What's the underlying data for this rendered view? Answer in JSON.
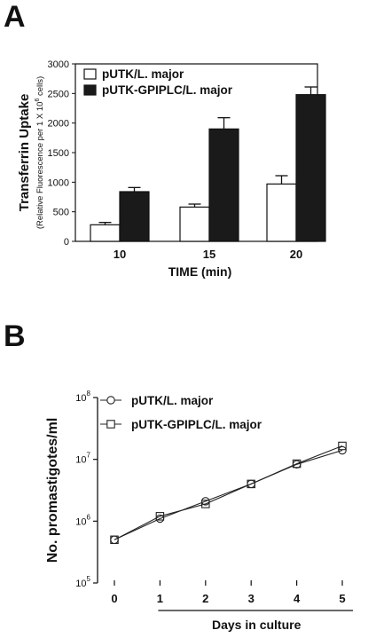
{
  "panels": {
    "a_label": "A",
    "b_label": "B"
  },
  "chart_data": [
    {
      "type": "bar",
      "panel": "A",
      "categories": [
        "10",
        "15",
        "20"
      ],
      "series": [
        {
          "name": "pUTK/L. major",
          "fill": "#ffffff",
          "values": [
            280,
            580,
            970
          ],
          "errors": [
            40,
            50,
            140
          ]
        },
        {
          "name": "pUTK-GPIPLC/L. major",
          "fill": "#1a1a1a",
          "values": [
            840,
            1900,
            2480
          ],
          "errors": [
            70,
            190,
            130
          ]
        }
      ],
      "ylim": [
        0,
        3000
      ],
      "yticks": [
        "0",
        "500",
        "1000",
        "1500",
        "2000",
        "2500",
        "3000"
      ],
      "ylabel_main": "Transferrin Uptake",
      "ylabel_sub_prefix": "(Relative Fluorescence per 1 X 10",
      "ylabel_sub_exp": "6",
      "ylabel_sub_suffix": " cells)",
      "xlabel": "TIME (min)",
      "legend": "top-left"
    },
    {
      "type": "line",
      "panel": "B",
      "yscale": "log",
      "x": [
        0,
        1,
        2,
        3,
        4,
        5
      ],
      "xticks": [
        "0",
        "1",
        "2",
        "3",
        "4",
        "5"
      ],
      "series": [
        {
          "name": "pUTK/L. major",
          "marker": "circle",
          "values": [
            500000,
            1100000,
            2100000,
            4000000,
            8300000,
            14000000
          ]
        },
        {
          "name": "pUTK-GPIPLC/L. major",
          "marker": "square",
          "values": [
            500000,
            1200000,
            1900000,
            4000000,
            8500000,
            16500000
          ]
        }
      ],
      "yticks": [
        {
          "base": "10",
          "exp": "5",
          "value": 100000
        },
        {
          "base": "10",
          "exp": "6",
          "value": 1000000
        },
        {
          "base": "10",
          "exp": "7",
          "value": 10000000
        },
        {
          "base": "10",
          "exp": "8",
          "value": 100000000
        }
      ],
      "ylim": [
        100000,
        100000000
      ],
      "ylabel": "No. promastigotes/ml",
      "xlabel": "Days in culture",
      "legend": "top-left"
    }
  ]
}
